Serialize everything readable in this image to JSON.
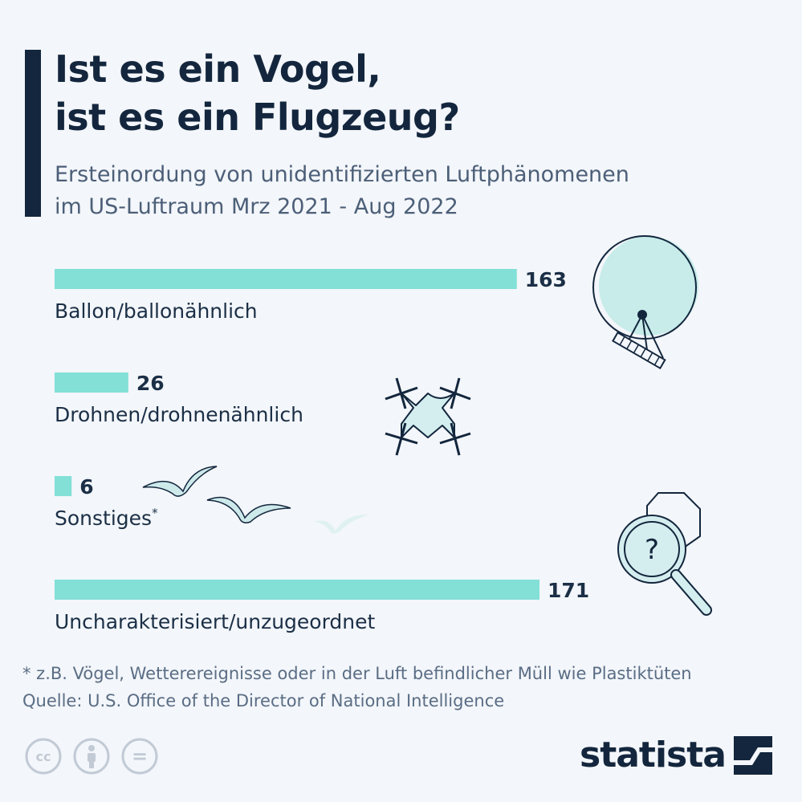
{
  "title_lines": [
    "Ist es ein Vogel,",
    "ist es ein Flugzeug?"
  ],
  "subtitle_lines": [
    "Ersteinordung von unidentifizierten Luftphänomenen",
    "im US-Luftraum Mrz 2021 - Aug 2022"
  ],
  "chart_data": {
    "type": "bar",
    "orientation": "horizontal",
    "categories": [
      "Ballon/ballonähnlich",
      "Drohnen/drohnenähnlich",
      "Sonstiges",
      "Uncharakterisiert/unzugeordnet"
    ],
    "category_markers": [
      "",
      "",
      "*",
      ""
    ],
    "values": [
      163,
      26,
      6,
      171
    ],
    "bar_color": "#82e0d7",
    "xlim": [
      0,
      171
    ],
    "grid": false
  },
  "footnotes": [
    "* z.B. Vögel, Wetterereignisse oder in der Luft befindlicher Müll wie Plastiktüten",
    "Quelle: U.S. Office of the Director of National Intelligence"
  ],
  "license_icons": [
    "cc-icon",
    "person-icon",
    "equals-icon"
  ],
  "license_glyphs": [
    "cc",
    "="
  ],
  "brand": {
    "name": "statista"
  },
  "question_glyph": "?",
  "colors": {
    "background": "#f3f6fa",
    "navy": "#13263d",
    "bar": "#82e0d7",
    "text_gray": "#5a6d85"
  }
}
